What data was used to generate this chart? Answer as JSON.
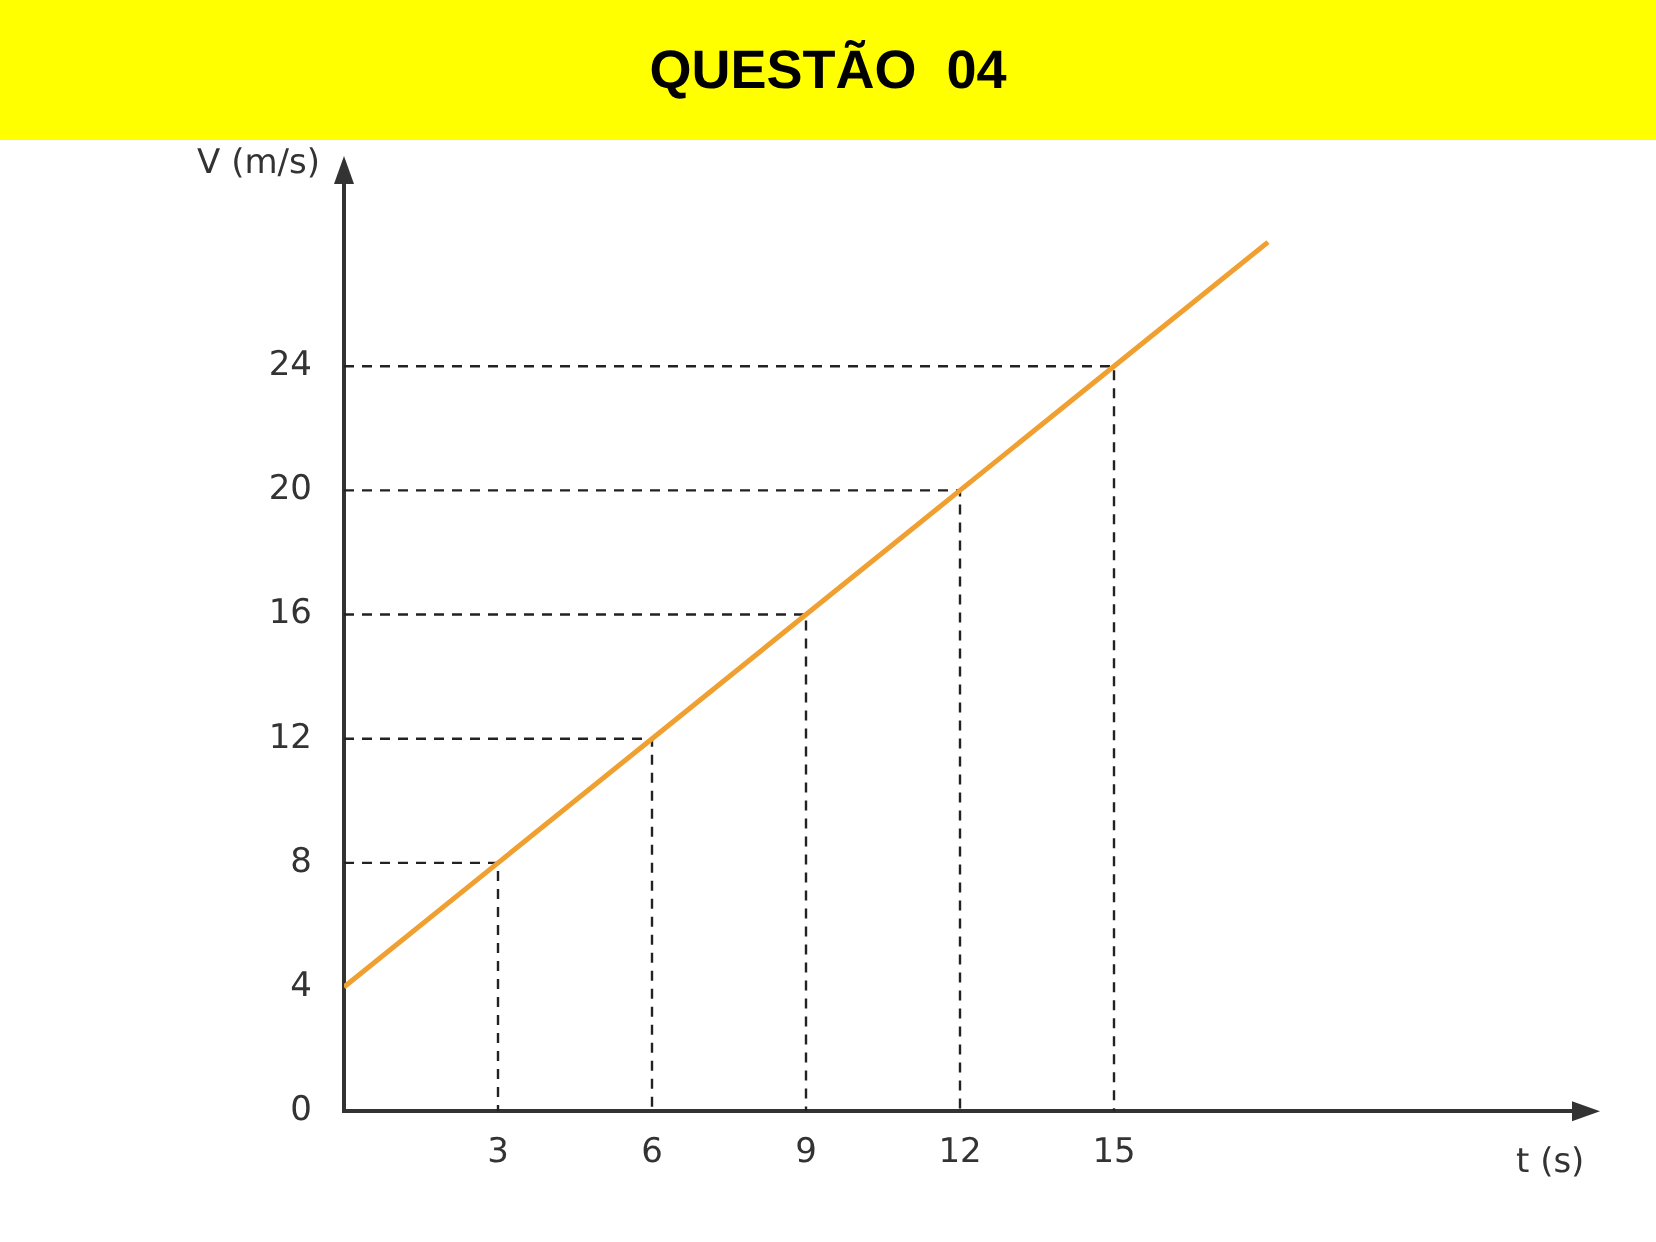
{
  "chart_data": {
    "type": "line",
    "title": "QUESTÃO  04",
    "xlabel": "t (s)",
    "ylabel": "V (m/s)",
    "x": [
      0,
      3,
      6,
      9,
      12,
      15,
      18
    ],
    "series": [
      {
        "color": "#f0a030",
        "values": [
          4,
          8,
          12,
          16,
          20,
          24,
          28
        ]
      },
      {
        "color": "#222222",
        "line_style": "dashed",
        "x": [
          0,
          3,
          3
        ],
        "values": [
          8,
          8,
          0
        ]
      },
      {
        "color": "#222222",
        "line_style": "dashed",
        "x": [
          0,
          6,
          6
        ],
        "values": [
          12,
          12,
          0
        ]
      },
      {
        "color": "#222222",
        "line_style": "dashed",
        "x": [
          0,
          9,
          9
        ],
        "values": [
          16,
          16,
          0
        ]
      },
      {
        "color": "#222222",
        "line_style": "dashed",
        "x": [
          0,
          12,
          12
        ],
        "values": [
          20,
          20,
          0
        ]
      },
      {
        "color": "#222222",
        "line_style": "dashed",
        "x": [
          0,
          15,
          15
        ],
        "values": [
          24,
          24,
          0
        ]
      }
    ],
    "xlim": [
      0,
      24
    ],
    "ylim": [
      0,
      30
    ],
    "xticks": [
      3,
      6,
      9,
      12,
      15
    ],
    "yticks": [
      0,
      4,
      8,
      12,
      16,
      20,
      24
    ]
  }
}
